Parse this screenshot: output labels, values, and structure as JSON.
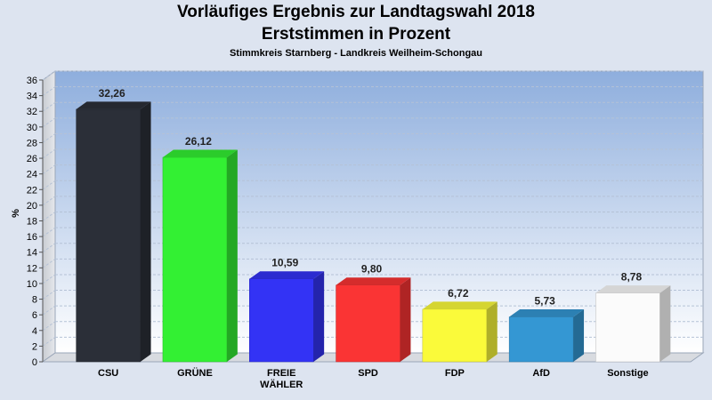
{
  "chart_data": {
    "type": "bar",
    "title": "Vorläufiges Ergebnis zur Landtagswahl 2018",
    "subtitle": "Erststimmen in Prozent",
    "subsubtitle": "Stimmkreis Starnberg - Landkreis Weilheim-Schongau",
    "ylabel": "%",
    "ylim": [
      0,
      36
    ],
    "ytick_step": 2,
    "grid": true,
    "categories": [
      {
        "label": [
          "CSU"
        ],
        "value": 32.26,
        "value_label": "32,26",
        "color": "#2b2f38"
      },
      {
        "label": [
          "GRÜNE"
        ],
        "value": 26.12,
        "value_label": "26,12",
        "color": "#33f033"
      },
      {
        "label": [
          "FREIE",
          "WÄHLER"
        ],
        "value": 10.59,
        "value_label": "10,59",
        "color": "#3333f5"
      },
      {
        "label": [
          "SPD"
        ],
        "value": 9.8,
        "value_label": "9,80",
        "color": "#fa3434"
      },
      {
        "label": [
          "FDP"
        ],
        "value": 6.72,
        "value_label": "6,72",
        "color": "#fafa3a"
      },
      {
        "label": [
          "AfD"
        ],
        "value": 5.73,
        "value_label": "5,73",
        "color": "#3497d3"
      },
      {
        "label": [
          "Sonstige"
        ],
        "value": 8.78,
        "value_label": "8,78",
        "color": "#fbfbfb"
      }
    ]
  }
}
